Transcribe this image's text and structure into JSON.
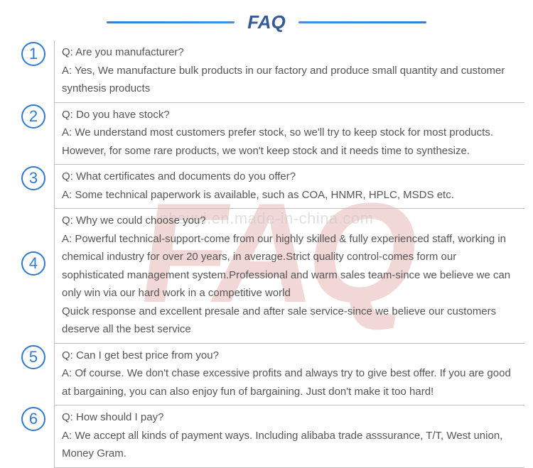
{
  "title": "FAQ",
  "watermark": "nbsuyi.en.made-in-china.com",
  "bg_text": "FAQ",
  "colors": {
    "accent_blue": "#2f7ad1",
    "title_blue": "#335a9a",
    "text": "#555555",
    "border": "#bfbfbf",
    "bg_red": "rgba(180,40,30,0.18)"
  },
  "items": [
    {
      "num": "1",
      "q": "Q: Are you manufacturer?",
      "a": "A: Yes, We manufacture bulk products in our factory and produce small quantity and customer synthesis products"
    },
    {
      "num": "2",
      "q": "Q: Do you have stock?",
      "a": "A: We understand most customers prefer stock, so we'll try to keep stock for most products. However, for some rare products, we won't keep stock and it needs time to synthesize."
    },
    {
      "num": "3",
      "q": "Q: What certificates and documents do you offer?",
      "a": "A: Some technical paperwork is available, such as COA, HNMR, HPLC, MSDS etc."
    },
    {
      "num": "4",
      "q": "Q: Why we could choose you?",
      "a": "A: Powerful technical-support-come from our highly skilled & fully experienced staff, working in chemical industry for over 20 years, in average.Strict quality control-comes form our sophisticated management system.Professional and warm sales team-since we believe we can only win via our hard work in a competitive world\nQuick response and excellent presale and after sale service-since we believe our customers deserve all the best service"
    },
    {
      "num": "5",
      "q": "Q: Can I get best price from you?",
      "a": "A: Of course. We don't chase excessive profits and always try to give best offer. If you are good at bargaining, you can also enjoy fun of bargaining. Just don't make it too hard!"
    },
    {
      "num": "6",
      "q": "Q: How should I pay?",
      "a": "A: We accept all kinds of payment ways. Including alibaba trade asssurance, T/T, West union, Money Gram."
    }
  ]
}
